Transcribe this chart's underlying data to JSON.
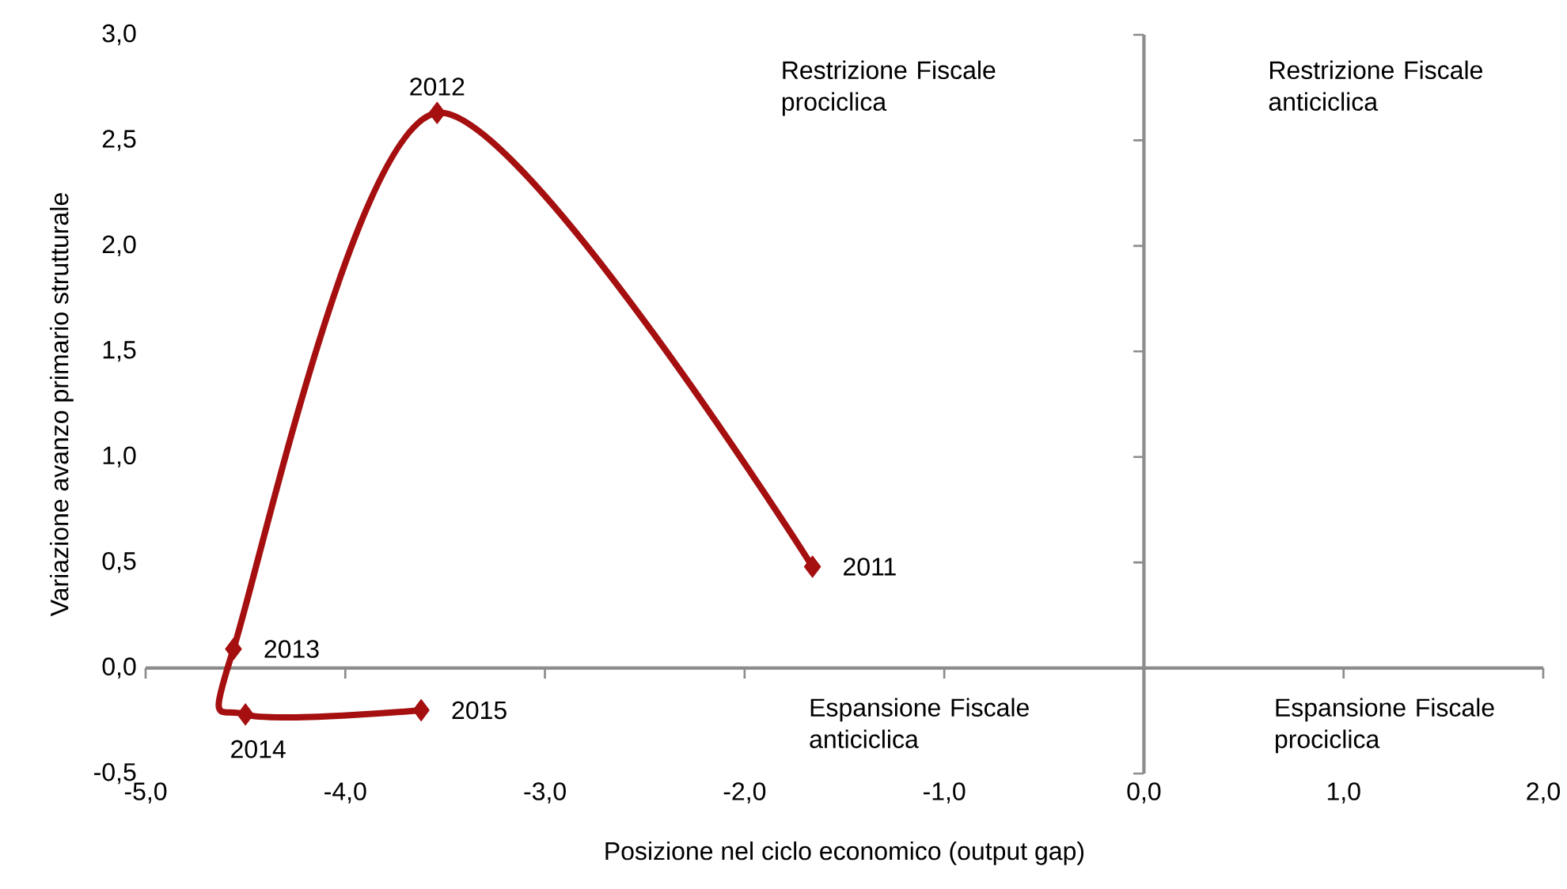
{
  "chart_data": {
    "type": "line",
    "xlabel": "Posizione nel ciclo economico (output gap)",
    "ylabel": "Variazione avanzo primario strutturale",
    "xlim": [
      -5,
      2
    ],
    "ylim": [
      -0.5,
      3
    ],
    "xticks": [
      {
        "value": -5,
        "label": "-5,0"
      },
      {
        "value": -4,
        "label": "-4,0"
      },
      {
        "value": -3,
        "label": "-3,0"
      },
      {
        "value": -2,
        "label": "-2,0"
      },
      {
        "value": -1,
        "label": "-1,0"
      },
      {
        "value": 0,
        "label": "0,0"
      },
      {
        "value": 1,
        "label": "1,0"
      },
      {
        "value": 2,
        "label": "2,0"
      }
    ],
    "yticks": [
      {
        "value": -0.5,
        "label": "-0,5"
      },
      {
        "value": 0,
        "label": "0,0"
      },
      {
        "value": 0.5,
        "label": "0,5"
      },
      {
        "value": 1,
        "label": "1,0"
      },
      {
        "value": 1.5,
        "label": "1,5"
      },
      {
        "value": 2,
        "label": "2,0"
      },
      {
        "value": 2.5,
        "label": "2,5"
      },
      {
        "value": 3,
        "label": "3,0"
      }
    ],
    "series": [
      {
        "x": [
          -1.66,
          -3.54,
          -4.56,
          -4.5,
          -3.62
        ],
        "values": [
          0.48,
          2.63,
          0.09,
          -0.22,
          -0.2
        ],
        "color": "#a50f0f"
      }
    ],
    "marker": "diamond",
    "line_style": "solid",
    "annotations": [
      {
        "text": "2011",
        "x": -1.66,
        "y": 0.48
      },
      {
        "text": "2012",
        "x": -3.54,
        "y": 2.63
      },
      {
        "text": "2013",
        "x": -4.56,
        "y": 0.09
      },
      {
        "text": "2014",
        "x": -4.5,
        "y": -0.22
      },
      {
        "text": "2015",
        "x": -3.62,
        "y": -0.2
      },
      "Restrizione Fiscale prociclica",
      "Restrizione Fiscale anticiclica",
      "Espansione Fiscale anticiclica",
      "Espansione Fiscale prociclica"
    ]
  }
}
